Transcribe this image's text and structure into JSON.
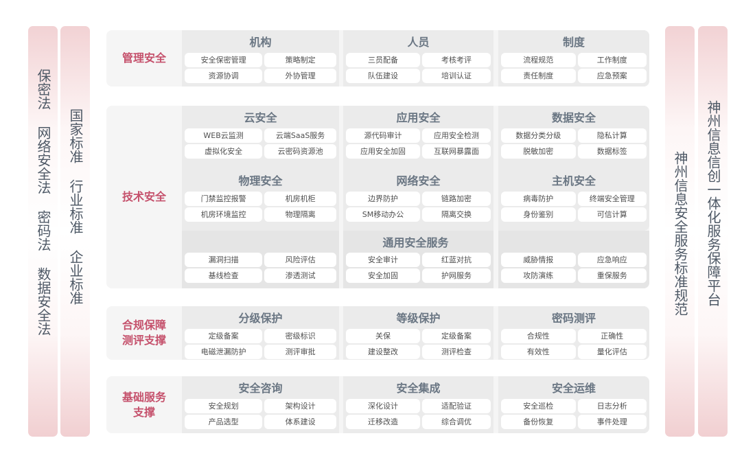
{
  "left_pillars": [
    {
      "phrases": [
        "保密法",
        "网络安全法",
        "密码法",
        "数据安全法"
      ]
    },
    {
      "phrases": [
        "国家标准",
        "行业标准",
        "企业标准"
      ]
    }
  ],
  "right_pillars": [
    {
      "phrases": [
        "神州信息安全服务标准规范"
      ]
    },
    {
      "phrases": [
        "神州信息信创一体化服务保障平台"
      ]
    }
  ],
  "colors": {
    "label": "#c5516c",
    "column_title": "#6a7683",
    "pillar_tint": "#f2d2d4"
  },
  "sections": [
    {
      "label": "管理安全",
      "columns": [
        {
          "groups": [
            {
              "title": "机构",
              "chips": [
                "安全保密管理",
                "策略制定",
                "资源协调",
                "外协管理"
              ]
            }
          ]
        },
        {
          "groups": [
            {
              "title": "人员",
              "chips": [
                "三员配备",
                "考核考评",
                "队伍建设",
                "培训认证"
              ]
            }
          ]
        },
        {
          "groups": [
            {
              "title": "制度",
              "chips": [
                "流程规范",
                "工作制度",
                "责任制度",
                "应急预案"
              ]
            }
          ]
        }
      ]
    },
    {
      "label": "技术安全",
      "columns": [
        {
          "groups": [
            {
              "title": "云安全",
              "chips": [
                "WEB云监测",
                "云端SaaS服务",
                "虚拟化安全",
                "云密码资源池"
              ]
            },
            {
              "title": "物理安全",
              "chips": [
                "门禁监控报警",
                "机房机柜",
                "机房环境监控",
                "物理隔离"
              ]
            }
          ]
        },
        {
          "groups": [
            {
              "title": "应用安全",
              "chips": [
                "源代码审计",
                "应用安全检测",
                "应用安全加固",
                "互联网暴露面"
              ]
            },
            {
              "title": "网络安全",
              "chips": [
                "边界防护",
                "链路加密",
                "SM移动办公",
                "隔离交换"
              ]
            }
          ]
        },
        {
          "groups": [
            {
              "title": "数据安全",
              "chips": [
                "数据分类分级",
                "隐私计算",
                "脱敏加密",
                "数据标签"
              ]
            },
            {
              "title": "主机安全",
              "chips": [
                "病毒防护",
                "终端安全管理",
                "身份鉴别",
                "可信计算"
              ]
            }
          ]
        }
      ],
      "band": {
        "title": "通用安全服务",
        "columns": [
          [
            "漏洞扫描",
            "风险评估",
            "基线检查",
            "渗透测试"
          ],
          [
            "安全审计",
            "红蓝对抗",
            "安全加固",
            "护网服务"
          ],
          [
            "威胁情报",
            "应急响应",
            "攻防演练",
            "重保服务"
          ]
        ]
      }
    },
    {
      "label": "合规保障\n测评支撑",
      "columns": [
        {
          "groups": [
            {
              "title": "分级保护",
              "chips": [
                "定级备案",
                "密级标识",
                "电磁泄漏防护",
                "测评审批"
              ]
            }
          ]
        },
        {
          "groups": [
            {
              "title": "等级保护",
              "chips": [
                "关保",
                "定级备案",
                "建设整改",
                "测评检查"
              ]
            }
          ]
        },
        {
          "groups": [
            {
              "title": "密码测评",
              "chips": [
                "合规性",
                "正确性",
                "有效性",
                "量化评估"
              ]
            }
          ]
        }
      ]
    },
    {
      "label": "基础服务\n支撑",
      "columns": [
        {
          "groups": [
            {
              "title": "安全咨询",
              "chips": [
                "安全规划",
                "架构设计",
                "产品选型",
                "体系建设"
              ]
            }
          ]
        },
        {
          "groups": [
            {
              "title": "安全集成",
              "chips": [
                "深化设计",
                "适配验证",
                "迁移改造",
                "综合调优"
              ]
            }
          ]
        },
        {
          "groups": [
            {
              "title": "安全运维",
              "chips": [
                "安全巡检",
                "日志分析",
                "备份恢复",
                "事件处理"
              ]
            }
          ]
        }
      ]
    }
  ]
}
